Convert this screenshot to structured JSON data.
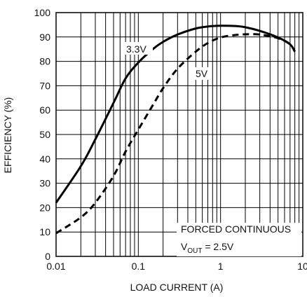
{
  "chart_data": {
    "type": "line",
    "xlabel": "LOAD CURRENT (A)",
    "ylabel": "EFFICIENCY (%)",
    "x_scale": "log",
    "xlim": [
      0.01,
      10
    ],
    "ylim": [
      0,
      100
    ],
    "grid": true,
    "x_ticks": [
      {
        "value": 0.01,
        "label": "0.01"
      },
      {
        "value": 0.1,
        "label": "0.1"
      },
      {
        "value": 1,
        "label": "1"
      },
      {
        "value": 10,
        "label": "10"
      }
    ],
    "y_ticks": [
      {
        "value": 0,
        "label": "0"
      },
      {
        "value": 10,
        "label": "10"
      },
      {
        "value": 20,
        "label": "20"
      },
      {
        "value": 30,
        "label": "30"
      },
      {
        "value": 40,
        "label": "40"
      },
      {
        "value": 50,
        "label": "50"
      },
      {
        "value": 60,
        "label": "60"
      },
      {
        "value": 70,
        "label": "70"
      },
      {
        "value": 80,
        "label": "80"
      },
      {
        "value": 90,
        "label": "90"
      },
      {
        "value": 100,
        "label": "100"
      }
    ],
    "series": [
      {
        "name": "3.3V",
        "style": "solid",
        "x": [
          0.01,
          0.02,
          0.03,
          0.05,
          0.07,
          0.1,
          0.15,
          0.2,
          0.3,
          0.5,
          0.7,
          1,
          1.5,
          2,
          3,
          5,
          7,
          8
        ],
        "y": [
          22,
          37,
          48,
          63,
          73,
          79.5,
          85,
          88,
          91,
          93.5,
          94.3,
          94.6,
          94.5,
          94,
          92.5,
          89.8,
          87,
          84
        ]
      },
      {
        "name": "5V",
        "style": "dashed",
        "x": [
          0.01,
          0.02,
          0.03,
          0.05,
          0.07,
          0.1,
          0.15,
          0.2,
          0.3,
          0.5,
          0.7,
          1,
          1.5,
          2,
          3,
          5,
          7,
          8
        ],
        "y": [
          9.5,
          16,
          22,
          33,
          43,
          52,
          62,
          69,
          77,
          84,
          87.5,
          89.8,
          90.8,
          91.1,
          91,
          89.5,
          87,
          84
        ]
      }
    ],
    "annotations": {
      "label_33v": "3.3V",
      "label_5v": "5V",
      "condition_line1": "FORCED CONTINUOUS",
      "condition_vout_main": "V",
      "condition_vout_sub": "OUT",
      "condition_vout_value": " = 2.5V"
    }
  },
  "colors": {
    "line": "#000000",
    "grid": "#000000",
    "background": "#ffffff"
  }
}
